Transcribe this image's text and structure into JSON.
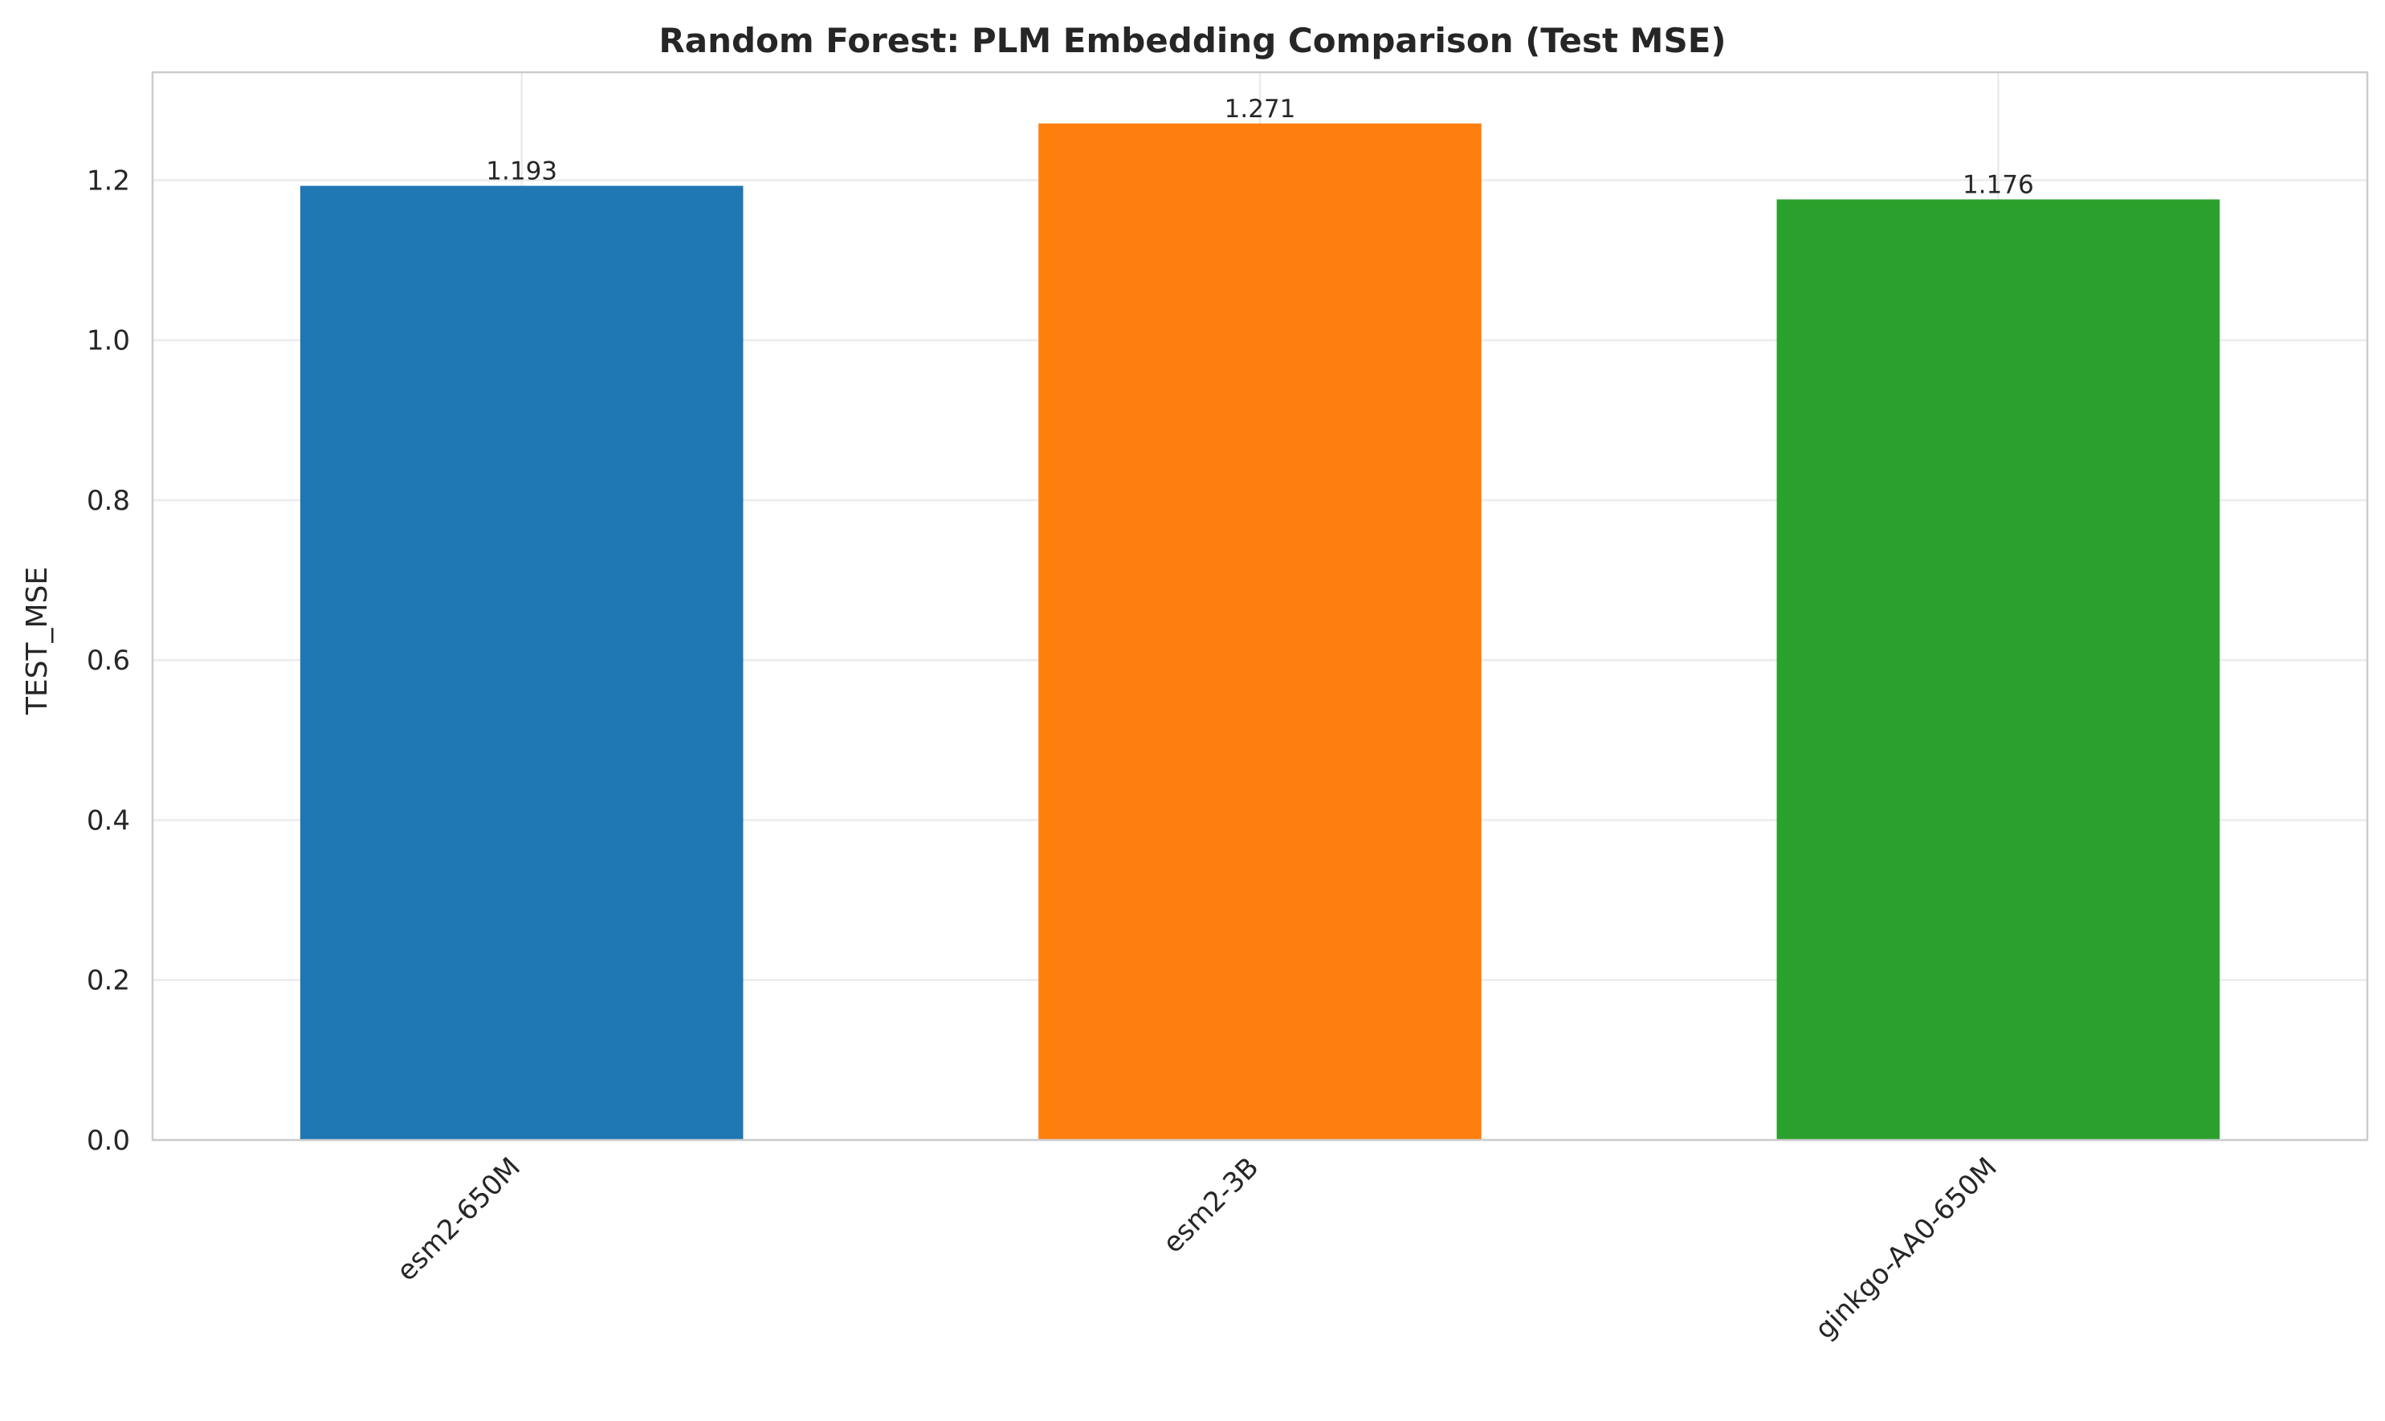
{
  "chart_data": {
    "type": "bar",
    "title": "Random Forest: PLM Embedding Comparison (Test MSE)",
    "xlabel": "",
    "ylabel": "TEST_MSE",
    "categories": [
      "esm2-650M",
      "esm2-3B",
      "ginkgo-AA0-650M"
    ],
    "values": [
      1.193,
      1.271,
      1.176
    ],
    "data_labels": [
      "1.193",
      "1.271",
      "1.176"
    ],
    "colors": [
      "#1f77b4",
      "#ff7f0e",
      "#2ca02c"
    ],
    "ylim": [
      0,
      1.335
    ],
    "yticks": [
      0.0,
      0.2,
      0.4,
      0.6,
      0.8,
      1.0,
      1.2
    ],
    "ytick_labels": [
      "0.0",
      "0.2",
      "0.4",
      "0.6",
      "0.8",
      "1.0",
      "1.2"
    ],
    "grid": true,
    "legend": "none"
  }
}
